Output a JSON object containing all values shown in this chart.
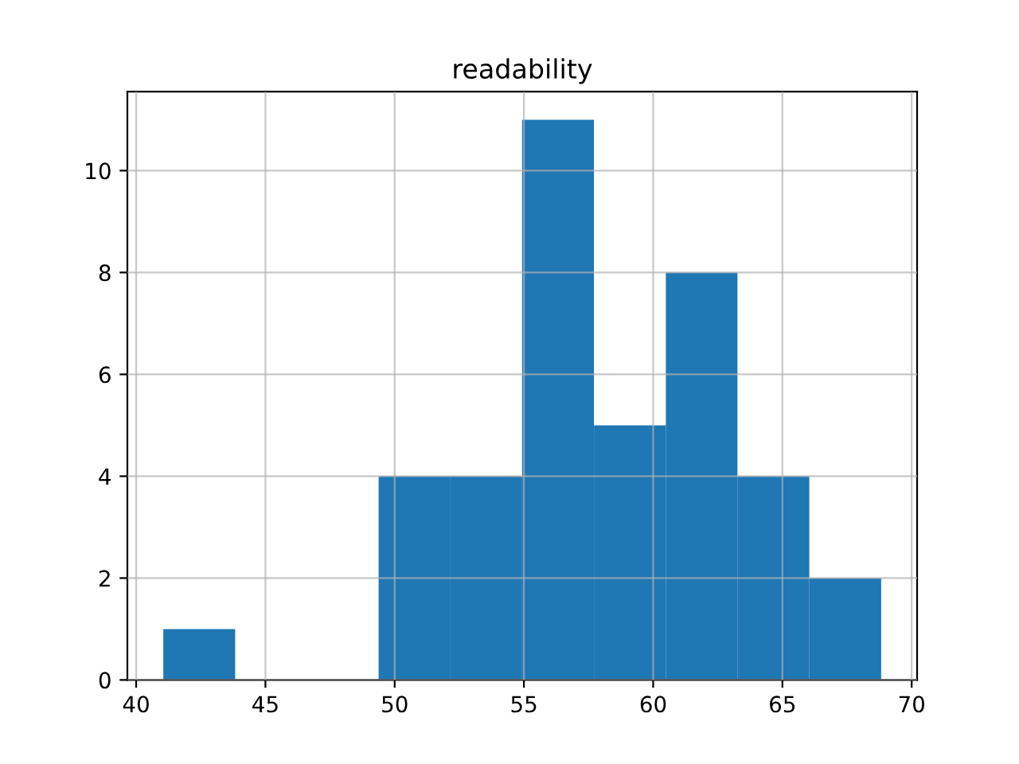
{
  "chart_data": {
    "type": "histogram",
    "title": "readability",
    "bins": [
      41.05,
      43.83,
      46.6,
      49.38,
      52.16,
      54.93,
      57.71,
      60.49,
      63.26,
      66.04,
      68.82
    ],
    "values": [
      1,
      0,
      0,
      4,
      4,
      11,
      5,
      8,
      4,
      2
    ],
    "color": "#1f77b4",
    "xlim": [
      39.66,
      70.21
    ],
    "xticks": [
      40,
      45,
      50,
      55,
      60,
      65,
      70
    ],
    "ylim": [
      0,
      11.55
    ],
    "yticks": [
      0,
      2,
      4,
      6,
      8,
      10
    ],
    "grid": true
  }
}
